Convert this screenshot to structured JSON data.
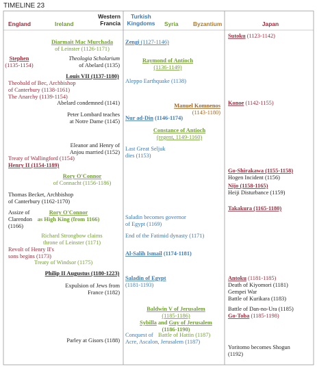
{
  "header": {
    "title": "TIMELINE 23",
    "columns": [
      {
        "lines": [
          "England"
        ],
        "color": "#9c2a3a"
      },
      {
        "lines": [
          "Ireland"
        ],
        "color": "#6e9e2e"
      },
      {
        "lines": [
          "Western",
          "Francia"
        ],
        "color": "#222222"
      },
      {
        "lines": [
          "Turkish",
          "Kingdoms"
        ],
        "color": "#3d78b5"
      },
      {
        "lines": [
          "Syria"
        ],
        "color": "#6e9e2e"
      },
      {
        "lines": [
          "Byzantium"
        ],
        "color": "#b07a2a"
      },
      {
        "lines": [
          "Japan"
        ],
        "color": "#9c2a3a"
      }
    ]
  },
  "entries": [
    {
      "color": "#6e9e2e",
      "lines": [
        [
          {
            "text": "Diarmait Mac Murchada",
            "bold": true,
            "underline": true
          }
        ],
        [
          {
            "text": "of Leinster (1126-1171)"
          }
        ]
      ]
    },
    {
      "color": "#9c2a3a",
      "lines": [
        [
          {
            "text": "Stephen",
            "bold": true,
            "underline": true
          }
        ],
        [
          {
            "text": "(1135-1154)"
          }
        ]
      ]
    },
    {
      "color": "#222222",
      "lines": [
        [
          {
            "text": "Theologia Scholarium",
            "italic": true
          }
        ],
        [
          {
            "text": "of Abelard (1135)"
          }
        ]
      ]
    },
    {
      "color": "#222222",
      "lines": [
        [
          {
            "text": "Louis VII (1137-1180)",
            "bold": true,
            "underline": true
          }
        ]
      ]
    },
    {
      "color": "#9c2a3a",
      "lines": [
        [
          {
            "text": "Theobald of Bec, Archbishop"
          }
        ],
        [
          {
            "text": "of Canterbury (1138-1161)"
          }
        ],
        [
          {
            "text": "The Anarchy (1139-1154)"
          }
        ]
      ]
    },
    {
      "color": "#222222",
      "lines": [
        [
          {
            "text": "Abelard condemned (1141)"
          }
        ]
      ]
    },
    {
      "color": "#222222",
      "lines": [
        [
          {
            "text": "Peter Lombard teaches"
          }
        ],
        [
          {
            "text": "at Notre Dame (1145)"
          }
        ]
      ]
    },
    {
      "color": "#222222",
      "lines": [
        [
          {
            "text": "Eleanor and Henry of"
          }
        ],
        [
          {
            "text": "Anjou married (1152)"
          }
        ]
      ]
    },
    {
      "color": "#9c2a3a",
      "lines": [
        [
          {
            "text": "Treaty of Wallingford (1154)"
          }
        ],
        [
          {
            "text": "Henry II (1154-1189)",
            "bold": true,
            "underline": true
          }
        ]
      ]
    },
    {
      "color": "#6e9e2e",
      "lines": [
        [
          {
            "text": "Rory O'Connor",
            "bold": true,
            "underline": true
          }
        ],
        [
          {
            "text": "of Connacht (1156-1186)"
          }
        ]
      ]
    },
    {
      "color": "#222222",
      "lines": [
        [
          {
            "text": "Thomas Becket, Archbishop"
          }
        ],
        [
          {
            "text": "of Canterbury (1162-1170)"
          }
        ]
      ]
    },
    {
      "color": "#222222",
      "lines": [
        [
          {
            "text": "Assize of"
          }
        ],
        [
          {
            "text": "Clarendon"
          }
        ],
        [
          {
            "text": "(1166)"
          }
        ]
      ]
    },
    {
      "color": "#6e9e2e",
      "lines": [
        [
          {
            "text": "Rory O'Connor",
            "bold": true,
            "underline": true
          }
        ],
        [
          {
            "text": "as High King (from 1166)",
            "bold": true
          }
        ]
      ]
    },
    {
      "color": "#6e9e2e",
      "lines": [
        [
          {
            "text": "Richard Strongbow claims"
          }
        ],
        [
          {
            "text": "throne of Leinster (1171)"
          }
        ]
      ]
    },
    {
      "color": "#9c2a3a",
      "lines": [
        [
          {
            "text": "Revolt of Henry II's"
          }
        ],
        [
          {
            "text": "sons begins (1173)"
          }
        ]
      ]
    },
    {
      "color": "#6e9e2e",
      "lines": [
        [
          {
            "text": "Treaty of Windsor (1175)"
          }
        ]
      ]
    },
    {
      "color": "#222222",
      "lines": [
        [
          {
            "text": "Philip II Augustus (1180-1223)",
            "bold": true,
            "underline": true
          }
        ]
      ]
    },
    {
      "color": "#222222",
      "lines": [
        [
          {
            "text": "Expulsion of Jews from"
          }
        ],
        [
          {
            "text": "France (1182)"
          }
        ]
      ]
    },
    {
      "color": "#222222",
      "lines": [
        [
          {
            "text": "Parley at Gisors (1188)"
          }
        ]
      ]
    },
    {
      "color": "#3d78b5",
      "lines": [
        [
          {
            "text": "Zengi",
            "bold": true,
            "underline": true
          },
          {
            "text": " (1127-1146)",
            "underline": true
          }
        ]
      ]
    },
    {
      "color": "#6e9e2e",
      "lines": [
        [
          {
            "text": "Raymond of Antioch",
            "bold": true,
            "underline": true
          }
        ],
        [
          {
            "text": "(1136-1149)",
            "underline": true
          }
        ]
      ]
    },
    {
      "color": "#3d78b5",
      "lines": [
        [
          {
            "text": "Aleppo Earthquake (1138)"
          }
        ]
      ]
    },
    {
      "color": "#a5631f",
      "lines": [
        [
          {
            "text": "Manuel Komnenos",
            "bold": true,
            "underline": true
          }
        ],
        [
          {
            "text": "(1143-1180)"
          }
        ]
      ]
    },
    {
      "color": "#3d78b5",
      "lines": [
        [
          {
            "text": "Nur ad-Din",
            "bold": true,
            "underline": true
          },
          {
            "text": " (1146-1174)",
            "bold": true
          }
        ]
      ]
    },
    {
      "color": "#6e9e2e",
      "lines": [
        [
          {
            "text": "Constance of Antioch",
            "bold": true,
            "underline": true
          }
        ],
        [
          {
            "text": "(regent, 1149-1160)",
            "underline": true
          }
        ]
      ]
    },
    {
      "color": "#3d78b5",
      "lines": [
        [
          {
            "text": "Last Great Seljuk"
          }
        ],
        [
          {
            "text": "dies (1153)"
          }
        ]
      ]
    },
    {
      "color": "#3d78b5",
      "lines": [
        [
          {
            "text": "Saladin becomes governor"
          }
        ],
        [
          {
            "text": "of Egypt (1169)"
          }
        ]
      ]
    },
    {
      "color": "#3d78b5",
      "lines": [
        [
          {
            "text": "End of the Fatimid dynasty (1171)"
          }
        ]
      ]
    },
    {
      "color": "#3d78b5",
      "lines": [
        [
          {
            "text": "Al-Salih Ismail",
            "bold": true,
            "underline": true
          },
          {
            "text": " (1174-1181)",
            "bold": true
          }
        ]
      ]
    },
    {
      "color": "#3d78b5",
      "lines": [
        [
          {
            "text": "Saladin of Egypt",
            "bold": true,
            "underline": true
          }
        ],
        [
          {
            "text": "(1181-1193)"
          }
        ]
      ]
    },
    {
      "color": "#6e9e2e",
      "lines": [
        [
          {
            "text": "Baldwin V of Jerusalem",
            "bold": true,
            "underline": true
          }
        ],
        [
          {
            "text": "(1185-1186)",
            "underline": true
          }
        ]
      ]
    },
    {
      "color": "#6e9e2e",
      "lines": [
        [
          {
            "text": "Sybilla",
            "bold": true,
            "underline": true
          },
          {
            "text": " and ",
            "bold": true
          },
          {
            "text": "Guy of Jerusalem",
            "bold": true,
            "underline": true
          }
        ],
        [
          {
            "text": "(1186-1190)",
            "bold": true
          }
        ]
      ]
    },
    {
      "color": "#3d78b5",
      "lines": [
        [
          {
            "text": "Conquest of"
          }
        ],
        [
          {
            "text": "Acre, Ascalon, Jerusalem (1187)"
          }
        ]
      ]
    },
    {
      "color": "#6e9e2e",
      "lines": [
        [
          {
            "text": "Battle of Hattin (1187)"
          }
        ]
      ]
    },
    {
      "color": "#9c2a3a",
      "lines": [
        [
          {
            "text": "Sutoku",
            "bold": true,
            "underline": true
          },
          {
            "text": " (1123-1142)"
          }
        ]
      ]
    },
    {
      "color": "#9c2a3a",
      "lines": [
        [
          {
            "text": "Konoe",
            "bold": true,
            "underline": true
          },
          {
            "text": " (1142-1155)"
          }
        ]
      ]
    },
    {
      "color": "#9c2a3a",
      "lines": [
        [
          {
            "text": "Go-Shirakawa (1155-1158)",
            "bold": true,
            "underline": true
          }
        ]
      ]
    },
    {
      "color": "#222222",
      "lines": [
        [
          {
            "text": "Hogen Incident (1156)"
          }
        ]
      ]
    },
    {
      "color": "#9c2a3a",
      "lines": [
        [
          {
            "text": "Nijo  (1158-1165)",
            "bold": true,
            "underline": true
          }
        ]
      ]
    },
    {
      "color": "#222222",
      "lines": [
        [
          {
            "text": "Heiji Disturbance (1159)"
          }
        ]
      ]
    },
    {
      "color": "#9c2a3a",
      "lines": [
        [
          {
            "text": "Takakura (1165-1180)",
            "bold": true,
            "underline": true
          }
        ]
      ]
    },
    {
      "color": "#9c2a3a",
      "lines": [
        [
          {
            "text": "Antoku",
            "bold": true,
            "underline": true
          },
          {
            "text": " (1181-1185)"
          }
        ]
      ]
    },
    {
      "color": "#222222",
      "lines": [
        [
          {
            "text": "Death of Kiyomori (1181)"
          }
        ],
        [
          {
            "text": "Gempei War"
          }
        ],
        [
          {
            "text": "Battle of Kurikara (1183)"
          }
        ]
      ]
    },
    {
      "color": "#222222",
      "lines": [
        [
          {
            "text": "Battle of Dan-no-Ura (1185)"
          }
        ]
      ]
    },
    {
      "color": "#9c2a3a",
      "lines": [
        [
          {
            "text": "Go-Toba",
            "bold": true,
            "underline": true
          },
          {
            "text": " (1185-1198)"
          }
        ]
      ]
    },
    {
      "color": "#222222",
      "lines": [
        [
          {
            "text": "Yoritomo becomes Shogun"
          }
        ],
        [
          {
            "text": "(1192)"
          }
        ]
      ]
    }
  ]
}
